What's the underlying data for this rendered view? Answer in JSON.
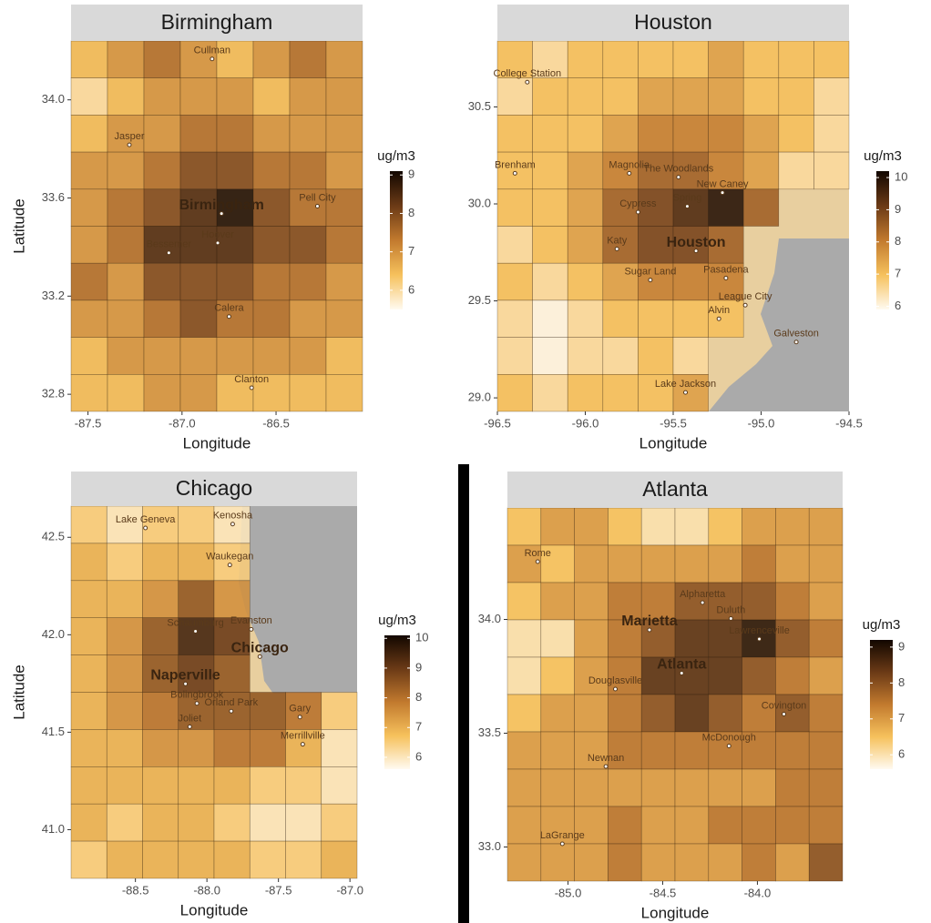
{
  "chart_data": [
    {
      "type": "heatmap",
      "title": "Birmingham",
      "x_label": "Longitude",
      "y_label": "Latitude",
      "xlim": [
        -87.59,
        -86.04
      ],
      "ylim": [
        32.73,
        34.24
      ],
      "xticks": [
        -87.5,
        {
          "value": -87.0,
          "label": "-87.0"
        },
        -86.5
      ],
      "yticks": [
        32.8,
        33.2,
        33.6,
        {
          "value": 34.0,
          "label": "34.0"
        }
      ],
      "colors": [
        "#fffaf0",
        "#f6c15c",
        "#c27a2e",
        "#6b3a16",
        "#120700"
      ],
      "legend": {
        "title": "ug/m3",
        "lim": [
          5.5,
          9.1
        ],
        "ticks": [
          6,
          7,
          8,
          9
        ]
      },
      "z": [
        [
          6.5,
          7,
          7.5,
          7,
          6.5,
          7,
          7.5,
          7
        ],
        [
          6,
          6.5,
          7,
          7,
          7,
          6.5,
          7,
          7
        ],
        [
          6.5,
          7,
          7,
          7.5,
          7.5,
          7,
          7,
          7
        ],
        [
          7,
          7,
          7.5,
          8,
          8,
          7.5,
          7.5,
          7
        ],
        [
          7,
          7.5,
          8,
          8.5,
          9,
          8,
          7.5,
          7.5
        ],
        [
          7,
          7.5,
          8.5,
          8.5,
          8.5,
          8,
          8,
          7.5
        ],
        [
          7.5,
          7,
          8,
          8,
          8,
          7.5,
          7.5,
          7
        ],
        [
          7,
          7,
          7.5,
          8,
          7.5,
          7.5,
          7,
          7
        ],
        [
          6.5,
          7,
          7,
          7,
          7,
          7,
          7,
          6.5
        ],
        [
          6.5,
          6.5,
          7,
          7,
          6.5,
          6.5,
          6.5,
          6.5
        ]
      ],
      "labels": [
        {
          "name": "Birmingham",
          "lon": -86.79,
          "lat": 33.57,
          "major": true
        },
        {
          "name": "Hoover",
          "lon": -86.81,
          "lat": 33.45
        },
        {
          "name": "Bessemer",
          "lon": -87.07,
          "lat": 33.41
        },
        {
          "name": "Calera",
          "lon": -86.75,
          "lat": 33.15
        },
        {
          "name": "Clanton",
          "lon": -86.63,
          "lat": 32.86
        },
        {
          "name": "Jasper",
          "lon": -87.28,
          "lat": 33.85
        },
        {
          "name": "Pell City",
          "lon": -86.28,
          "lat": 33.6
        },
        {
          "name": "Cullman",
          "lon": -86.84,
          "lat": 34.2
        }
      ]
    },
    {
      "type": "heatmap",
      "title": "Houston",
      "x_label": "Longitude",
      "xlim": [
        -96.5,
        -94.5
      ],
      "ylim": [
        28.93,
        30.84
      ],
      "xticks": [
        -96.5,
        {
          "value": -96.0,
          "label": "-96.0"
        },
        -95.5,
        {
          "value": -95.0,
          "label": "-95.0"
        },
        -94.5
      ],
      "yticks": [
        {
          "value": 29.0,
          "label": "29.0"
        },
        29.5,
        {
          "value": 30.0,
          "label": "30.0"
        },
        30.5
      ],
      "colors": [
        "#fffaf0",
        "#f6c15c",
        "#c27a2e",
        "#6b3a16",
        "#120700"
      ],
      "legend": {
        "title": "ug/m3",
        "lim": [
          5.9,
          10.2
        ],
        "ticks": [
          6,
          7,
          8,
          9,
          10
        ]
      },
      "z": [
        [
          7,
          6.5,
          7,
          7,
          7,
          7,
          7.5,
          7,
          7,
          7
        ],
        [
          6.5,
          7,
          7,
          7,
          7.5,
          7.5,
          7.5,
          7,
          7,
          6.5
        ],
        [
          7,
          7,
          7,
          7.5,
          8,
          8,
          8,
          7.5,
          7,
          6.5
        ],
        [
          7,
          7,
          7.5,
          8,
          8.5,
          8.5,
          8,
          7.5,
          6.5,
          6.5
        ],
        [
          7,
          7,
          7.5,
          8.5,
          9,
          9.5,
          10,
          8.5,
          null,
          null
        ],
        [
          6.5,
          7,
          7.5,
          8.5,
          9,
          9,
          8.5,
          null,
          null,
          null
        ],
        [
          7,
          6.5,
          7,
          7.5,
          8,
          8,
          8,
          null,
          null,
          null
        ],
        [
          6.5,
          6,
          6.5,
          7,
          7,
          7,
          7,
          null,
          null,
          null
        ],
        [
          6.5,
          6,
          6.5,
          6.5,
          7,
          6.5,
          null,
          null,
          null,
          null
        ],
        [
          7,
          6.5,
          7,
          7,
          7,
          7.5,
          null,
          null,
          null,
          null
        ]
      ],
      "labels": [
        {
          "name": "Houston",
          "lon": -95.37,
          "lat": 29.8,
          "major": true
        },
        {
          "name": "College Station",
          "lon": -96.33,
          "lat": 30.67
        },
        {
          "name": "Brenham",
          "lon": -96.4,
          "lat": 30.2
        },
        {
          "name": "Magnolia",
          "lon": -95.75,
          "lat": 30.2
        },
        {
          "name": "The Woodlands",
          "lon": -95.47,
          "lat": 30.18
        },
        {
          "name": "New Caney",
          "lon": -95.22,
          "lat": 30.1
        },
        {
          "name": "Spring",
          "lon": -95.42,
          "lat": 30.03
        },
        {
          "name": "Cypress",
          "lon": -95.7,
          "lat": 30.0
        },
        {
          "name": "Katy",
          "lon": -95.82,
          "lat": 29.81
        },
        {
          "name": "Sugar Land",
          "lon": -95.63,
          "lat": 29.65
        },
        {
          "name": "Pasadena",
          "lon": -95.2,
          "lat": 29.66
        },
        {
          "name": "League City",
          "lon": -95.09,
          "lat": 29.52
        },
        {
          "name": "Alvin",
          "lon": -95.24,
          "lat": 29.45
        },
        {
          "name": "Galveston",
          "lon": -94.8,
          "lat": 29.33
        },
        {
          "name": "Lake Jackson",
          "lon": -95.43,
          "lat": 29.07
        }
      ]
    },
    {
      "type": "heatmap",
      "title": "Chicago",
      "x_label": "Longitude",
      "y_label": "Latitude",
      "xlim": [
        -88.95,
        -86.95
      ],
      "ylim": [
        40.75,
        42.66
      ],
      "xticks": [
        -88.5,
        {
          "value": -88.0,
          "label": "-88.0"
        },
        -87.5,
        {
          "value": -87.0,
          "label": "-87.0"
        }
      ],
      "yticks": [
        {
          "value": 41.0,
          "label": "41.0"
        },
        41.5,
        {
          "value": 42.0,
          "label": "42.0"
        },
        42.5
      ],
      "colors": [
        "#fffaf0",
        "#f6c15c",
        "#c27a2e",
        "#6b3a16",
        "#120700"
      ],
      "legend": {
        "title": "ug/m3",
        "lim": [
          5.6,
          10.1
        ],
        "ticks": [
          6,
          7,
          8,
          9,
          10
        ]
      },
      "z": [
        [
          6.5,
          6,
          6.5,
          6.5,
          6,
          null,
          null,
          null
        ],
        [
          7,
          6.5,
          7,
          7,
          6.5,
          null,
          null,
          null
        ],
        [
          7,
          7,
          7.5,
          8.5,
          7.5,
          null,
          null,
          null
        ],
        [
          7,
          7.5,
          8.5,
          9.5,
          9,
          null,
          null,
          null
        ],
        [
          7,
          7.5,
          8.5,
          9,
          8.5,
          null,
          null,
          null
        ],
        [
          7,
          7.5,
          8,
          8.5,
          8.5,
          8.5,
          8,
          6.5
        ],
        [
          7,
          7,
          7.5,
          7.5,
          8,
          8,
          7,
          6
        ],
        [
          7,
          7,
          7,
          7,
          7,
          6.5,
          6.5,
          6
        ],
        [
          7,
          6.5,
          7,
          7,
          6.5,
          6,
          6,
          6.5
        ],
        [
          6.5,
          7,
          7,
          7,
          7,
          6.5,
          6.5,
          7
        ]
      ],
      "labels": [
        {
          "name": "Chicago",
          "lon": -87.63,
          "lat": 41.93,
          "major": true
        },
        {
          "name": "Kenosha",
          "lon": -87.82,
          "lat": 42.61
        },
        {
          "name": "Waukegan",
          "lon": -87.84,
          "lat": 42.4
        },
        {
          "name": "Lake Geneva",
          "lon": -88.43,
          "lat": 42.59
        },
        {
          "name": "Schaumburg",
          "lon": -88.08,
          "lat": 42.06
        },
        {
          "name": "Evanston",
          "lon": -87.69,
          "lat": 42.07
        },
        {
          "name": "Naperville",
          "lon": -88.15,
          "lat": 41.79,
          "major": true
        },
        {
          "name": "Bolingbrook",
          "lon": -88.07,
          "lat": 41.69
        },
        {
          "name": "Orland Park",
          "lon": -87.83,
          "lat": 41.65
        },
        {
          "name": "Joliet",
          "lon": -88.12,
          "lat": 41.57
        },
        {
          "name": "Gary",
          "lon": -87.35,
          "lat": 41.62
        },
        {
          "name": "Merrillville",
          "lon": -87.33,
          "lat": 41.48
        }
      ]
    },
    {
      "type": "heatmap",
      "title": "Atlanta",
      "x_label": "Longitude",
      "xlim": [
        -85.32,
        -83.55
      ],
      "ylim": [
        32.85,
        34.49
      ],
      "xticks": [
        {
          "value": -85.0,
          "label": "-85.0"
        },
        -84.5,
        {
          "value": -84.0,
          "label": "-84.0"
        }
      ],
      "yticks": [
        {
          "value": 33.0,
          "label": "33.0"
        },
        33.5,
        {
          "value": 34.0,
          "label": "34.0"
        }
      ],
      "colors": [
        "#fffaf0",
        "#f6c15c",
        "#c27a2e",
        "#6b3a16",
        "#120700"
      ],
      "legend": {
        "title": "ug/m3",
        "lim": [
          5.6,
          9.2
        ],
        "ticks": [
          6,
          7,
          8,
          9
        ]
      },
      "z": [
        [
          6.5,
          7,
          7,
          6.5,
          6,
          6,
          6.5,
          7,
          7,
          7
        ],
        [
          7,
          6.5,
          7,
          7,
          7,
          7,
          7,
          7.5,
          7,
          7
        ],
        [
          6.5,
          7,
          7,
          7.5,
          7.5,
          8,
          8,
          8,
          7.5,
          7
        ],
        [
          6,
          6,
          7,
          7.5,
          8,
          8.5,
          8.5,
          9,
          8,
          7.5
        ],
        [
          6,
          6.5,
          7,
          7.5,
          8.5,
          8.5,
          8.5,
          8,
          7.5,
          7
        ],
        [
          6.5,
          7,
          7,
          7.5,
          8,
          8.5,
          8,
          7.5,
          8,
          7.5
        ],
        [
          7,
          7,
          7,
          7.5,
          7.5,
          7.5,
          7.5,
          7.5,
          7.5,
          7.5
        ],
        [
          7,
          7,
          7,
          7,
          7,
          7,
          7,
          7,
          7.5,
          7.5
        ],
        [
          7,
          7,
          7,
          7.5,
          7,
          7,
          7.5,
          7.5,
          7.5,
          7.5
        ],
        [
          7,
          7,
          7,
          7.5,
          7,
          7,
          7,
          7.5,
          7,
          8
        ]
      ],
      "labels": [
        {
          "name": "Atlanta",
          "lon": -84.4,
          "lat": 33.8,
          "major": true
        },
        {
          "name": "Marietta",
          "lon": -84.57,
          "lat": 33.99,
          "major": true
        },
        {
          "name": "Alpharetta",
          "lon": -84.29,
          "lat": 34.11
        },
        {
          "name": "Duluth",
          "lon": -84.14,
          "lat": 34.04
        },
        {
          "name": "Lawrenceville",
          "lon": -83.99,
          "lat": 33.95
        },
        {
          "name": "Douglasville",
          "lon": -84.75,
          "lat": 33.73
        },
        {
          "name": "Covington",
          "lon": -83.86,
          "lat": 33.62
        },
        {
          "name": "McDonough",
          "lon": -84.15,
          "lat": 33.48
        },
        {
          "name": "Newnan",
          "lon": -84.8,
          "lat": 33.39
        },
        {
          "name": "Rome",
          "lon": -85.16,
          "lat": 34.29
        },
        {
          "name": "LaGrange",
          "lon": -85.03,
          "lat": 33.05
        }
      ]
    }
  ]
}
